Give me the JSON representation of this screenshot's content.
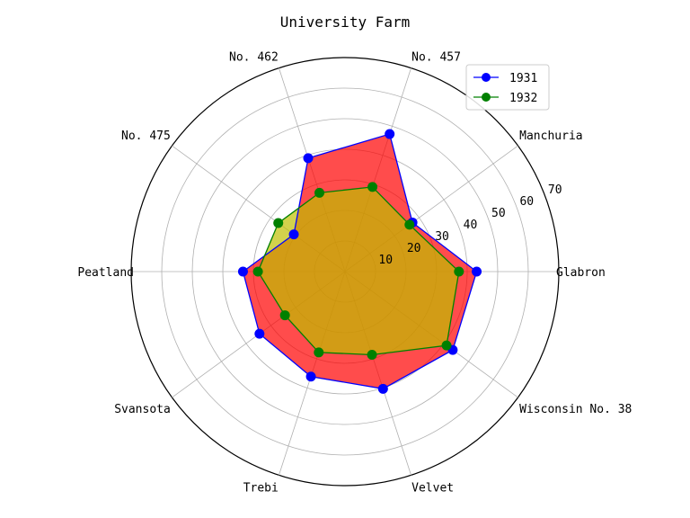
{
  "chart_data": {
    "type": "radar",
    "title": "University Farm",
    "categories": [
      "Glabron",
      "Manchuria",
      "No. 457",
      "No. 462",
      "No. 475",
      "Peatland",
      "Svansota",
      "Trebi",
      "Velvet",
      "Wisconsin No. 38"
    ],
    "series": [
      {
        "name": "1931",
        "values": [
          43.1,
          27.3,
          47.3,
          39.0,
          20.7,
          33.4,
          34.6,
          36.1,
          40.3,
          43.6
        ],
        "color": "#0000ff",
        "fill": "#ff0000"
      },
      {
        "name": "1932",
        "values": [
          37.3,
          26.1,
          29.1,
          27.1,
          27.0,
          28.5,
          24.3,
          27.8,
          28.6,
          41.1
        ],
        "color": "#008000",
        "fill": "#bfbf00"
      }
    ],
    "r_ticks": [
      10,
      20,
      30,
      40,
      50,
      60,
      70
    ],
    "rlim": [
      0,
      70
    ],
    "grid": true,
    "legend_position": "top-right"
  }
}
